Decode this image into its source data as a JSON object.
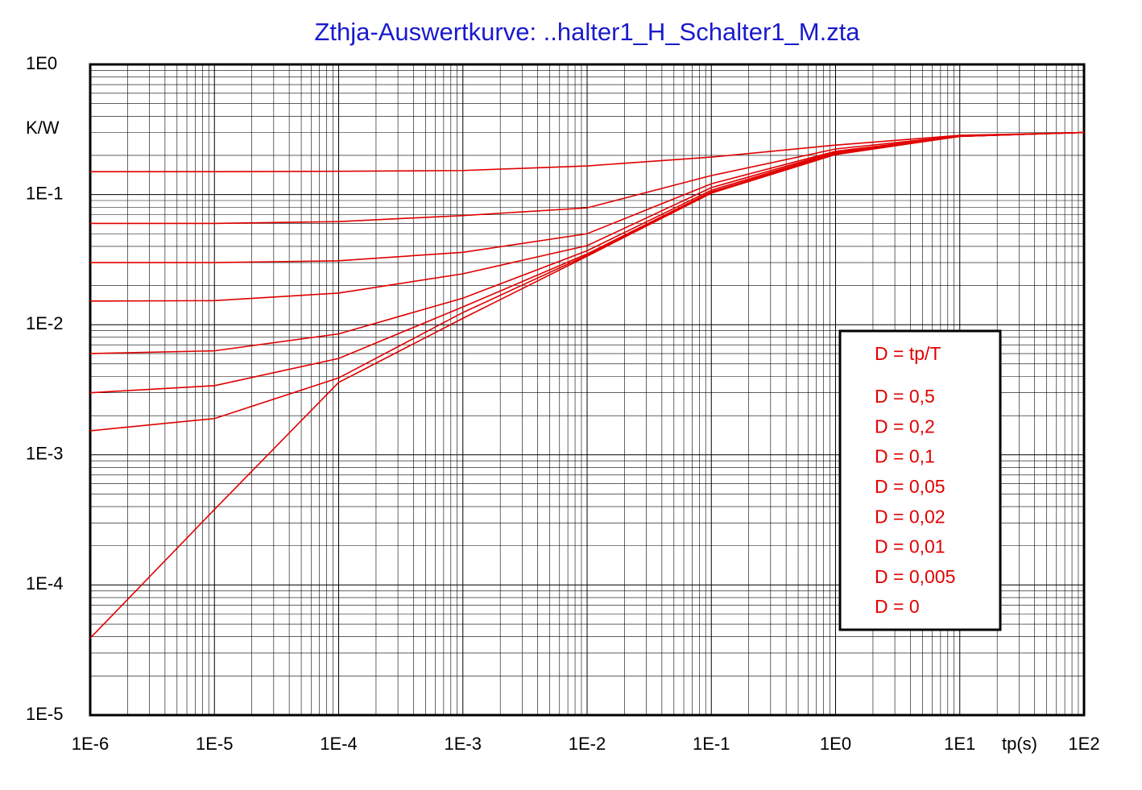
{
  "chart_data": {
    "type": "line",
    "title": "Zthja-Auswertkurve: ..halter1_H_Schalter1_M.zta",
    "y_unit_label": "K/W",
    "x_unit_label": "tp(s)",
    "x": [
      1e-06,
      1e-05,
      0.0001,
      0.001,
      0.01,
      0.1,
      1,
      10,
      100
    ],
    "xscale": "log",
    "yscale": "log",
    "xlim": [
      1e-06,
      100
    ],
    "ylim": [
      1e-05,
      1
    ],
    "xticks": [
      {
        "value": 1e-06,
        "label": "1E-6"
      },
      {
        "value": 1e-05,
        "label": "1E-5"
      },
      {
        "value": 0.0001,
        "label": "1E-4"
      },
      {
        "value": 0.001,
        "label": "1E-3"
      },
      {
        "value": 0.01,
        "label": "1E-2"
      },
      {
        "value": 0.1,
        "label": "1E-1"
      },
      {
        "value": 1,
        "label": "1E0"
      },
      {
        "value": 10,
        "label": "1E1"
      },
      {
        "value": 100,
        "label": "1E2"
      }
    ],
    "yticks": [
      {
        "value": 1,
        "label": "1E0"
      },
      {
        "value": 0.1,
        "label": "1E-1"
      },
      {
        "value": 0.01,
        "label": "1E-2"
      },
      {
        "value": 0.001,
        "label": "1E-3"
      },
      {
        "value": 0.0001,
        "label": "1E-4"
      },
      {
        "value": 1e-05,
        "label": "1E-5"
      }
    ],
    "grid": true,
    "minor_grid": true,
    "legend_title": "D = tp/T",
    "legend_position": "right",
    "series": [
      {
        "name": "D = 0,5",
        "color": "#e00000",
        "values": [
          0.15,
          0.15,
          0.151,
          0.153,
          0.166,
          0.194,
          0.24,
          0.285,
          0.3
        ]
      },
      {
        "name": "D = 0,2",
        "color": "#e00000",
        "values": [
          0.06,
          0.06,
          0.062,
          0.069,
          0.079,
          0.14,
          0.224,
          0.282,
          0.3
        ]
      },
      {
        "name": "D = 0,1",
        "color": "#e00000",
        "values": [
          0.03,
          0.03,
          0.031,
          0.036,
          0.05,
          0.121,
          0.215,
          0.281,
          0.3
        ]
      },
      {
        "name": "D = 0,05",
        "color": "#e00000",
        "values": [
          0.0152,
          0.0153,
          0.0175,
          0.0246,
          0.0405,
          0.113,
          0.212,
          0.281,
          0.3
        ]
      },
      {
        "name": "D = 0,02",
        "color": "#e00000",
        "values": [
          0.006,
          0.0063,
          0.0085,
          0.016,
          0.037,
          0.108,
          0.209,
          0.28,
          0.3
        ]
      },
      {
        "name": "D = 0,01",
        "color": "#e00000",
        "values": [
          0.003,
          0.0034,
          0.0055,
          0.0137,
          0.035,
          0.105,
          0.206,
          0.28,
          0.3
        ]
      },
      {
        "name": "D = 0,005",
        "color": "#e00000",
        "values": [
          0.00153,
          0.0019,
          0.0039,
          0.0124,
          0.0342,
          0.104,
          0.204,
          0.28,
          0.3
        ]
      },
      {
        "name": "D = 0",
        "color": "#e00000",
        "values": [
          3.9e-05,
          0.00038,
          0.0036,
          0.0112,
          0.0336,
          0.1025,
          0.203,
          0.28,
          0.3
        ]
      }
    ]
  }
}
